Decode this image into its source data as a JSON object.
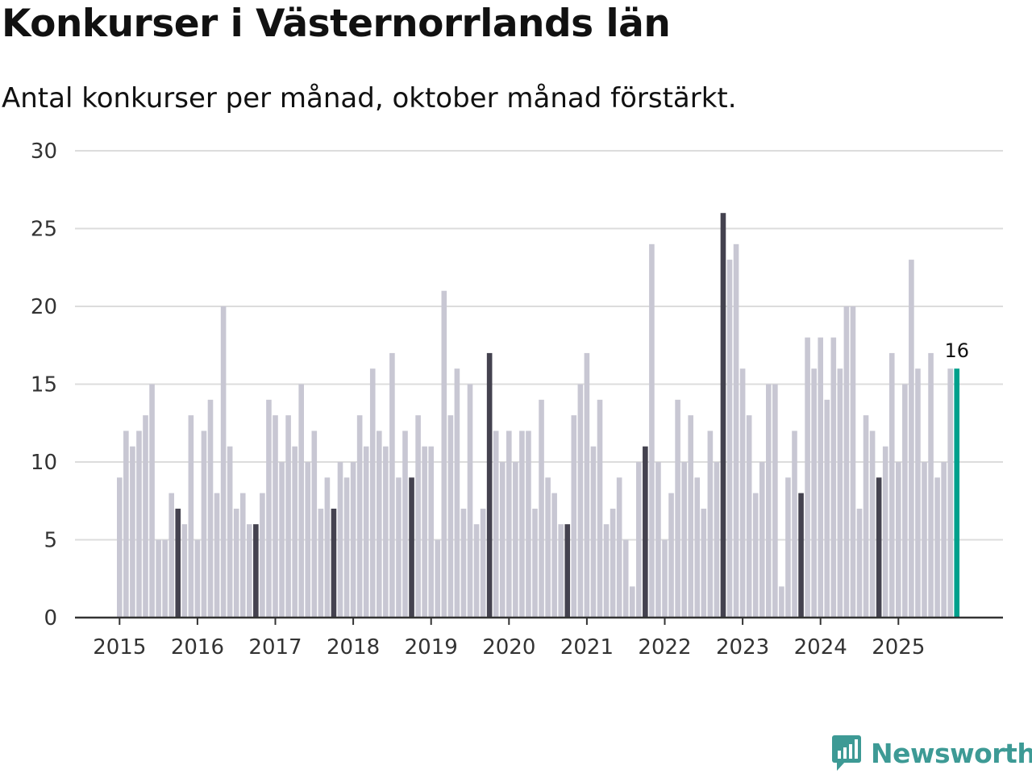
{
  "title": "Konkurser i Västernorrlands län",
  "subtitle": "Antal konkurser per månad, oktober månad förstärkt.",
  "brand": {
    "name": "Newsworthy",
    "icon": "newsworthy-logo-icon"
  },
  "colors": {
    "bar": "#c8c7d3",
    "highlight": "#44424f",
    "latest": "#00a08c",
    "grid": "#dcdcdc",
    "axis": "#333333",
    "brand": "#3d9a95"
  },
  "chart_data": {
    "type": "bar",
    "title": "Konkurser i Västernorrlands län",
    "subtitle": "Antal konkurser per månad, oktober månad förstärkt.",
    "xlabel": "",
    "ylabel": "",
    "ylim": [
      0,
      30
    ],
    "yticks": [
      0,
      5,
      10,
      15,
      20,
      25,
      30
    ],
    "xtick_labels": [
      "2015",
      "2016",
      "2017",
      "2018",
      "2019",
      "2020",
      "2021",
      "2022",
      "2023",
      "2024",
      "2025"
    ],
    "start": "2015-01",
    "highlight_month": "oktober",
    "grid": true,
    "annotation": {
      "label": "16",
      "month": "2025-10"
    },
    "series": [
      {
        "name": "Antal konkurser",
        "values": [
          9,
          12,
          11,
          12,
          13,
          15,
          5,
          5,
          8,
          7,
          6,
          13,
          5,
          12,
          14,
          8,
          20,
          11,
          7,
          8,
          6,
          6,
          8,
          14,
          13,
          10,
          13,
          11,
          15,
          10,
          12,
          7,
          9,
          7,
          10,
          9,
          10,
          13,
          11,
          16,
          12,
          11,
          17,
          9,
          12,
          9,
          13,
          11,
          11,
          5,
          21,
          13,
          16,
          7,
          15,
          6,
          7,
          17,
          12,
          10,
          12,
          10,
          12,
          12,
          7,
          14,
          9,
          8,
          6,
          6,
          13,
          15,
          17,
          11,
          14,
          6,
          7,
          9,
          5,
          2,
          10,
          11,
          24,
          10,
          5,
          8,
          14,
          10,
          13,
          9,
          7,
          12,
          10,
          26,
          23,
          24,
          16,
          13,
          8,
          10,
          15,
          15,
          2,
          9,
          12,
          8,
          18,
          16,
          18,
          14,
          18,
          16,
          20,
          20,
          7,
          13,
          12,
          9,
          11,
          17,
          10,
          15,
          23,
          16,
          10,
          17,
          9,
          10,
          16,
          16
        ]
      }
    ]
  }
}
